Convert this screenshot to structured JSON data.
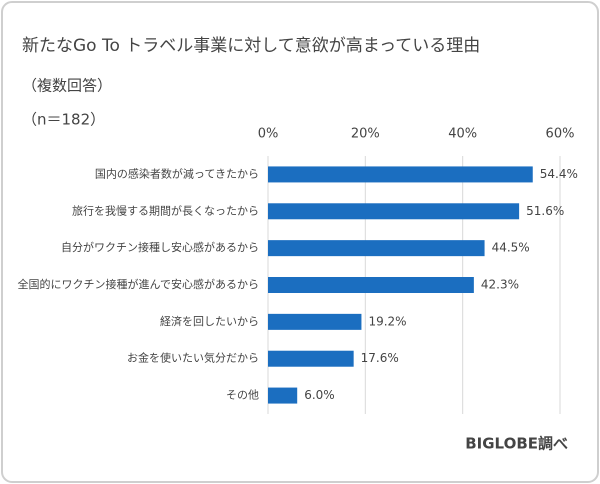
{
  "chart_data": {
    "type": "bar",
    "orientation": "horizontal",
    "title": "新たなGo To トラベル事業に対して意欲が高まっている理由",
    "subtitle": "（複数回答）",
    "sample_size": "（n＝182）",
    "source": "BIGLOBE調べ",
    "categories": [
      "国内の感染者数が減ってきたから",
      "旅行を我慢する期間が長くなったから",
      "自分がワクチン接種し安心感があるから",
      "全国的にワクチン接種が進んで安心感があるから",
      "経済を回したいから",
      "お金を使いたい気分だから",
      "その他"
    ],
    "values": [
      54.4,
      51.6,
      44.5,
      42.3,
      19.2,
      17.6,
      6.0
    ],
    "value_labels": [
      "54.4%",
      "51.6%",
      "44.5%",
      "42.3%",
      "19.2%",
      "17.6%",
      "6.0%"
    ],
    "color": "#1b6ec0",
    "xlim": [
      0,
      60
    ],
    "xticks": [
      {
        "value": 0,
        "label": "0%"
      },
      {
        "value": 20,
        "label": "20%"
      },
      {
        "value": 40,
        "label": "40%"
      },
      {
        "value": 60,
        "label": "60%"
      }
    ],
    "grid": true
  }
}
